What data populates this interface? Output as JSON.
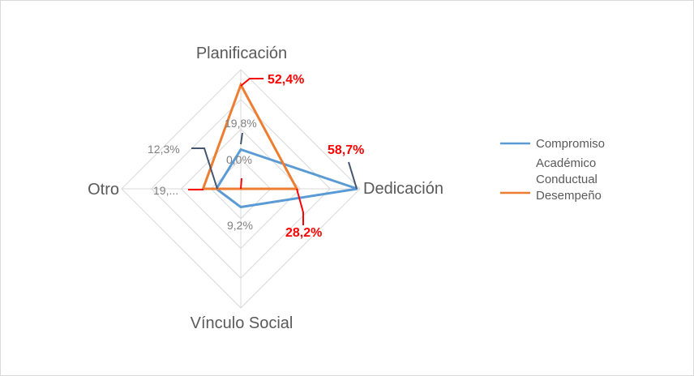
{
  "chart_data": {
    "type": "radar",
    "title": "",
    "axes": [
      "Planificación",
      "Dedicación",
      "Vínculo Social",
      "Otro"
    ],
    "rmax": 60,
    "ring_step": 15,
    "series": [
      {
        "name": "Compromiso Académico",
        "color": "#5b9bd5",
        "values": [
          19.8,
          58.7,
          9.2,
          12.3
        ]
      },
      {
        "name": "Conductual Desempeño",
        "color": "#ed7d31",
        "values": [
          52.4,
          28.2,
          0.0,
          19.0
        ]
      }
    ],
    "data_labels": [
      {
        "text": "19,8%",
        "style": "grey"
      },
      {
        "text": "0,0%",
        "style": "grey"
      },
      {
        "text": "12,3%",
        "style": "grey"
      },
      {
        "text": "19,...",
        "style": "grey"
      },
      {
        "text": "9,2%",
        "style": "grey"
      },
      {
        "text": "52,4%",
        "style": "red"
      },
      {
        "text": "58,7%",
        "style": "red"
      },
      {
        "text": "28,2%",
        "style": "red"
      }
    ],
    "legend": {
      "position": "right",
      "entries": [
        {
          "lines": [
            "Compromiso",
            "Académico"
          ],
          "color": "#5b9bd5"
        },
        {
          "lines": [
            "Conductual",
            "Desempeño"
          ],
          "color": "#ed7d31"
        }
      ]
    }
  }
}
